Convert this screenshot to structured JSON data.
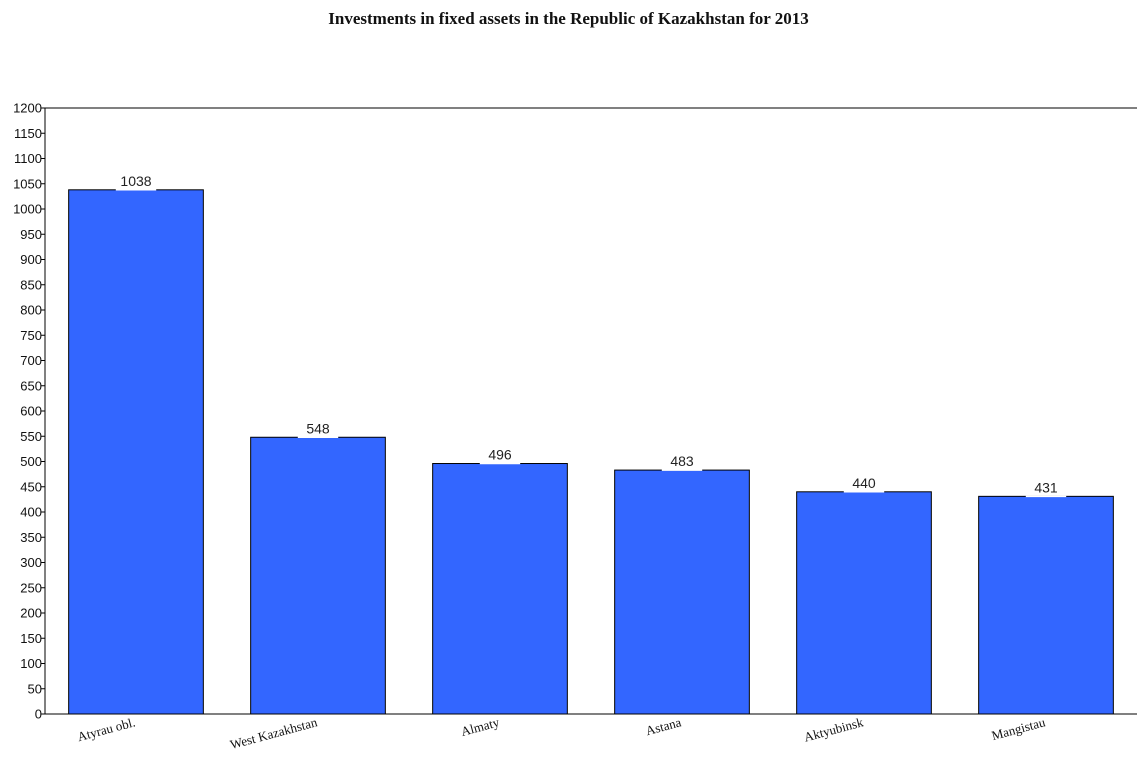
{
  "chart_data": {
    "type": "bar",
    "title": "Investments in fixed assets in the Republic of Kazakhstan for 2013",
    "xlabel": "",
    "ylabel": "",
    "categories": [
      "Atyrau obl.",
      "West Kazakhstan",
      "Almaty",
      "Astana",
      "Aktyubinsk",
      "Mangistau"
    ],
    "values": [
      1038,
      548,
      496,
      483,
      440,
      431
    ],
    "data_labels": [
      "1038",
      "548",
      "496",
      "483",
      "440",
      "431"
    ],
    "ylim": [
      0,
      1200
    ],
    "yticks": [
      0,
      50,
      100,
      150,
      200,
      250,
      300,
      350,
      400,
      450,
      500,
      550,
      600,
      650,
      700,
      750,
      800,
      850,
      900,
      950,
      1000,
      1050,
      1100,
      1150,
      1200
    ],
    "grid": false,
    "legend": "none",
    "bar_color": "#3366ff",
    "bar_edge_color": "#000000"
  }
}
